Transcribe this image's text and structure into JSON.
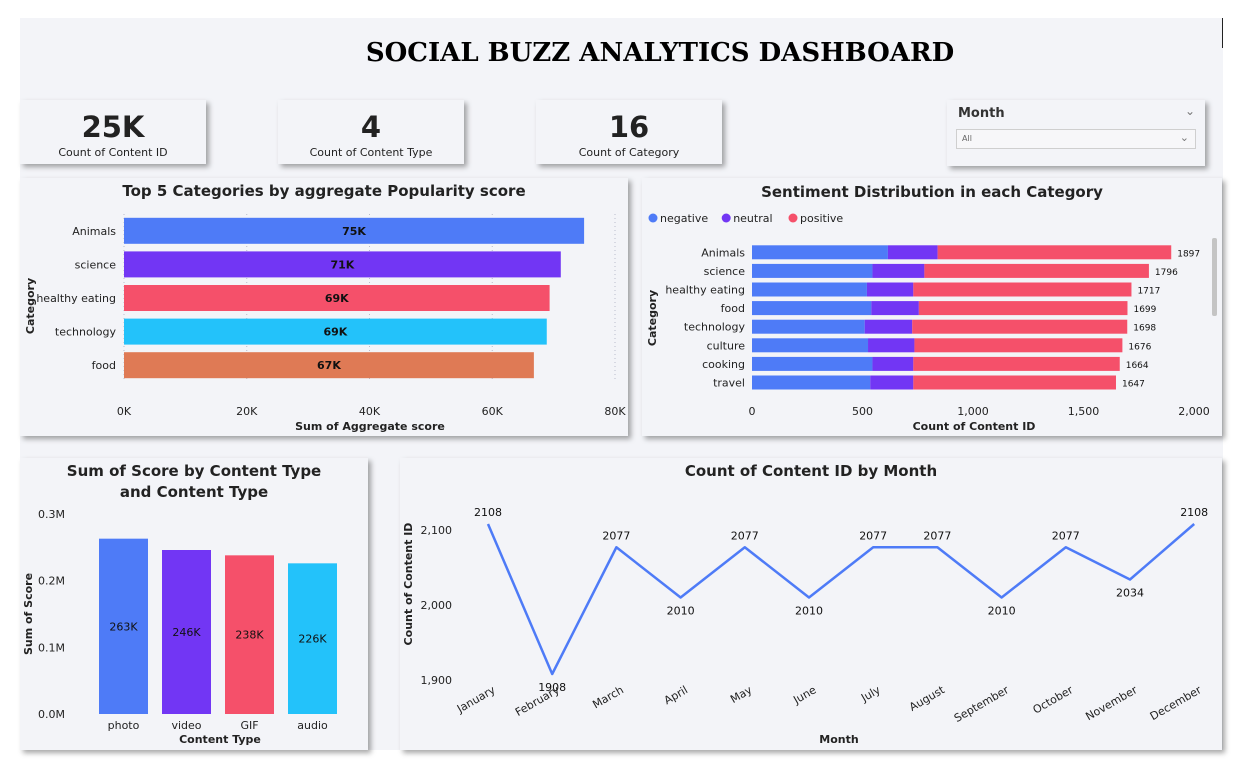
{
  "dashboard": {
    "title": "SOCIAL BUZZ ANALYTICS DASHBOARD"
  },
  "cards": [
    {
      "value": "25K",
      "label": "Count of Content ID"
    },
    {
      "value": "4",
      "label": "Count of Content Type"
    },
    {
      "value": "16",
      "label": "Count of Category"
    }
  ],
  "slicer": {
    "title": "Month",
    "value": "All",
    "icon": "chevron-down-icon"
  },
  "colors": {
    "blue": "#4e7bf7",
    "purple": "#7236f4",
    "red": "#f5506a",
    "cyan": "#23c2fa",
    "orange": "#df7a55",
    "line": "#4e7bf7"
  },
  "chart_data": [
    {
      "id": "top5",
      "type": "bar",
      "orientation": "horizontal",
      "title": "Top 5 Categories by aggregate Popularity score",
      "xlabel": "Sum of Aggregate score",
      "ylabel": "Category",
      "categories": [
        "Animals",
        "science",
        "healthy eating",
        "technology",
        "food"
      ],
      "values": [
        74965,
        71168,
        69344,
        68882,
        66783
      ],
      "data_labels": [
        "75K",
        "71K",
        "69K",
        "69K",
        "67K"
      ],
      "bar_colors": [
        "#4e7bf7",
        "#7236f4",
        "#f5506a",
        "#23c2fa",
        "#df7a55"
      ],
      "xlim": [
        0,
        80000
      ],
      "xticks": [
        0,
        20000,
        40000,
        60000,
        80000
      ],
      "xtick_labels": [
        "0K",
        "20K",
        "40K",
        "60K",
        "80K"
      ],
      "grid": true
    },
    {
      "id": "sentiment",
      "type": "bar",
      "orientation": "horizontal",
      "stacked": true,
      "title": "Sentiment Distribution in each Category",
      "xlabel": "Count of Content ID",
      "ylabel": "Category",
      "legend": {
        "position": "top-left",
        "entries": [
          "negative",
          "neutral",
          "positive"
        ]
      },
      "categories": [
        "Animals",
        "science",
        "healthy eating",
        "food",
        "technology",
        "culture",
        "cooking",
        "travel"
      ],
      "series": [
        {
          "name": "negative",
          "color": "#4e7bf7",
          "values": [
            615,
            545,
            520,
            540,
            510,
            525,
            545,
            535
          ]
        },
        {
          "name": "neutral",
          "color": "#7236f4",
          "values": [
            225,
            235,
            210,
            215,
            215,
            210,
            185,
            195
          ]
        },
        {
          "name": "positive",
          "color": "#f5506a",
          "values": [
            1057,
            1016,
            987,
            944,
            973,
            941,
            934,
            917
          ]
        }
      ],
      "totals": [
        1897,
        1796,
        1717,
        1699,
        1698,
        1676,
        1664,
        1647
      ],
      "xlim": [
        0,
        2000
      ],
      "xticks": [
        0,
        500,
        1000,
        1500,
        2000
      ],
      "xtick_labels": [
        "0",
        "500",
        "1,000",
        "1,500",
        "2,000"
      ]
    },
    {
      "id": "contenttype",
      "type": "bar",
      "title": "Sum of Score by Content Type and Content Type",
      "xlabel": "Content Type",
      "ylabel": "Sum of Score",
      "categories": [
        "photo",
        "video",
        "GIF",
        "audio"
      ],
      "values": [
        263000,
        246000,
        238000,
        226000
      ],
      "data_labels": [
        "263K",
        "246K",
        "238K",
        "226K"
      ],
      "bar_colors": [
        "#4e7bf7",
        "#7236f4",
        "#f5506a",
        "#23c2fa"
      ],
      "ylim": [
        0,
        300000
      ],
      "yticks": [
        0,
        100000,
        200000,
        300000
      ],
      "ytick_labels": [
        "0.0M",
        "0.1M",
        "0.2M",
        "0.3M"
      ]
    },
    {
      "id": "monthly",
      "type": "line",
      "title": "Count of Content ID by Month",
      "xlabel": "Month",
      "ylabel": "Count of Content ID",
      "x": [
        "January",
        "February",
        "March",
        "April",
        "May",
        "June",
        "July",
        "August",
        "September",
        "October",
        "November",
        "December"
      ],
      "values": [
        2108,
        1908,
        2077,
        2010,
        2077,
        2010,
        2077,
        2077,
        2010,
        2077,
        2034,
        2108
      ],
      "ylim": [
        1900,
        2100
      ],
      "yticks": [
        1900,
        2000,
        2100
      ],
      "ytick_labels": [
        "1,900",
        "2,000",
        "2,100"
      ],
      "color": "#4e7bf7"
    }
  ]
}
